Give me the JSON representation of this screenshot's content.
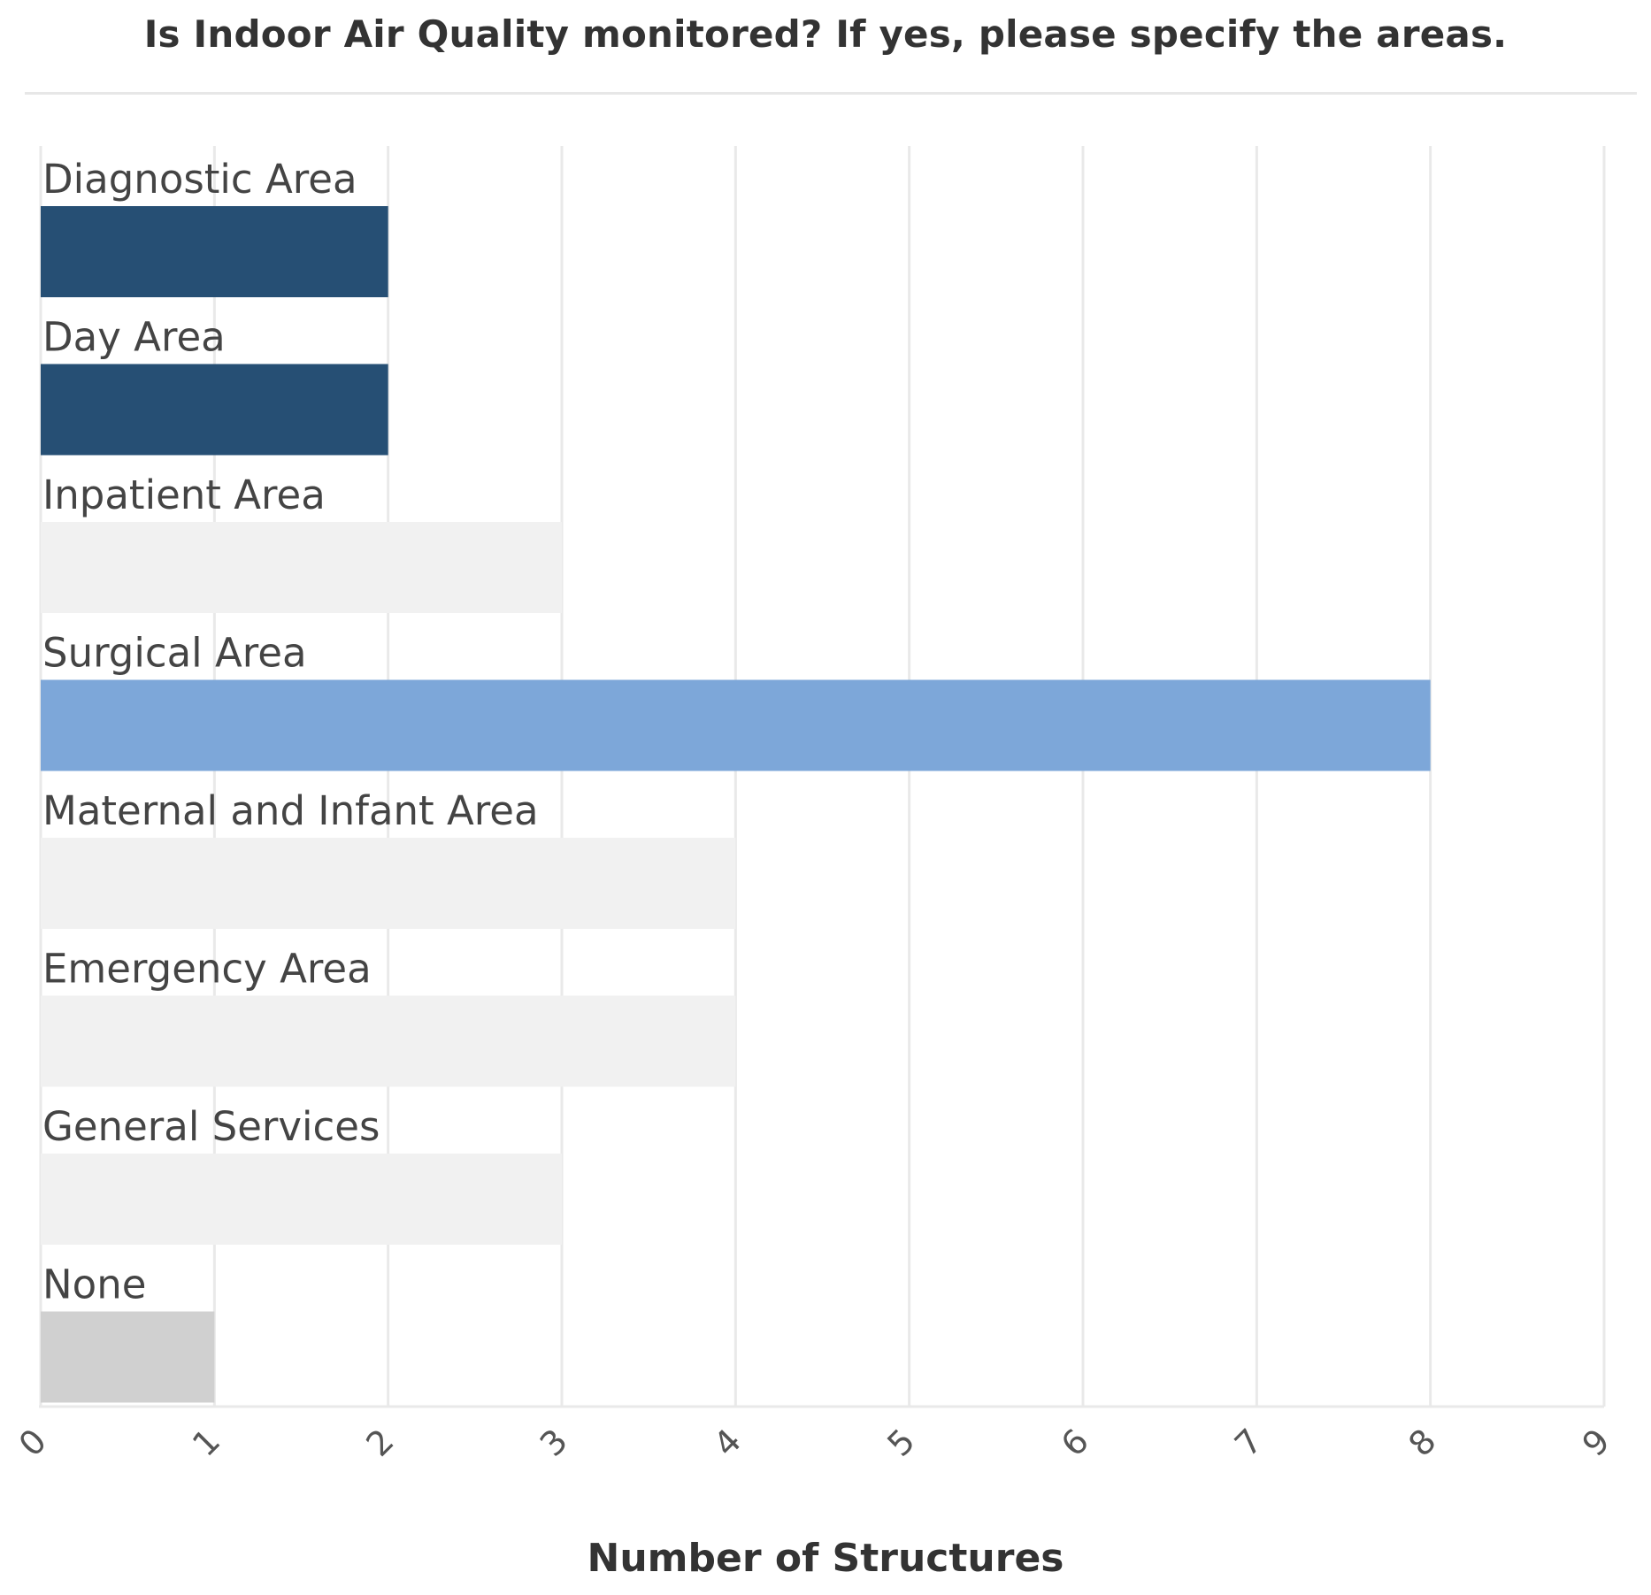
{
  "chart_data": {
    "type": "bar",
    "orientation": "horizontal",
    "title": "Is Indoor Air Quality monitored? If yes, please specify the areas.",
    "xlabel": "Number of Structures",
    "ylabel": "",
    "categories": [
      "Diagnostic Area",
      "Day Area",
      "Inpatient Area",
      "Surgical Area",
      "Maternal and Infant Area",
      "Emergency Area",
      "General Services",
      "None"
    ],
    "values": [
      2,
      2,
      3,
      8,
      4,
      4,
      3,
      1
    ],
    "bar_colors": [
      "#264f74",
      "#264f74",
      "#f1f1f1",
      "#7da7d9",
      "#f1f1f1",
      "#f1f1f1",
      "#f1f1f1",
      "#d0d0d0"
    ],
    "xlim": [
      0,
      9
    ],
    "xticks": [
      "0",
      "1",
      "2",
      "3",
      "4",
      "5",
      "6",
      "7",
      "8",
      "9"
    ],
    "grid": "vertical",
    "legend": "none"
  }
}
